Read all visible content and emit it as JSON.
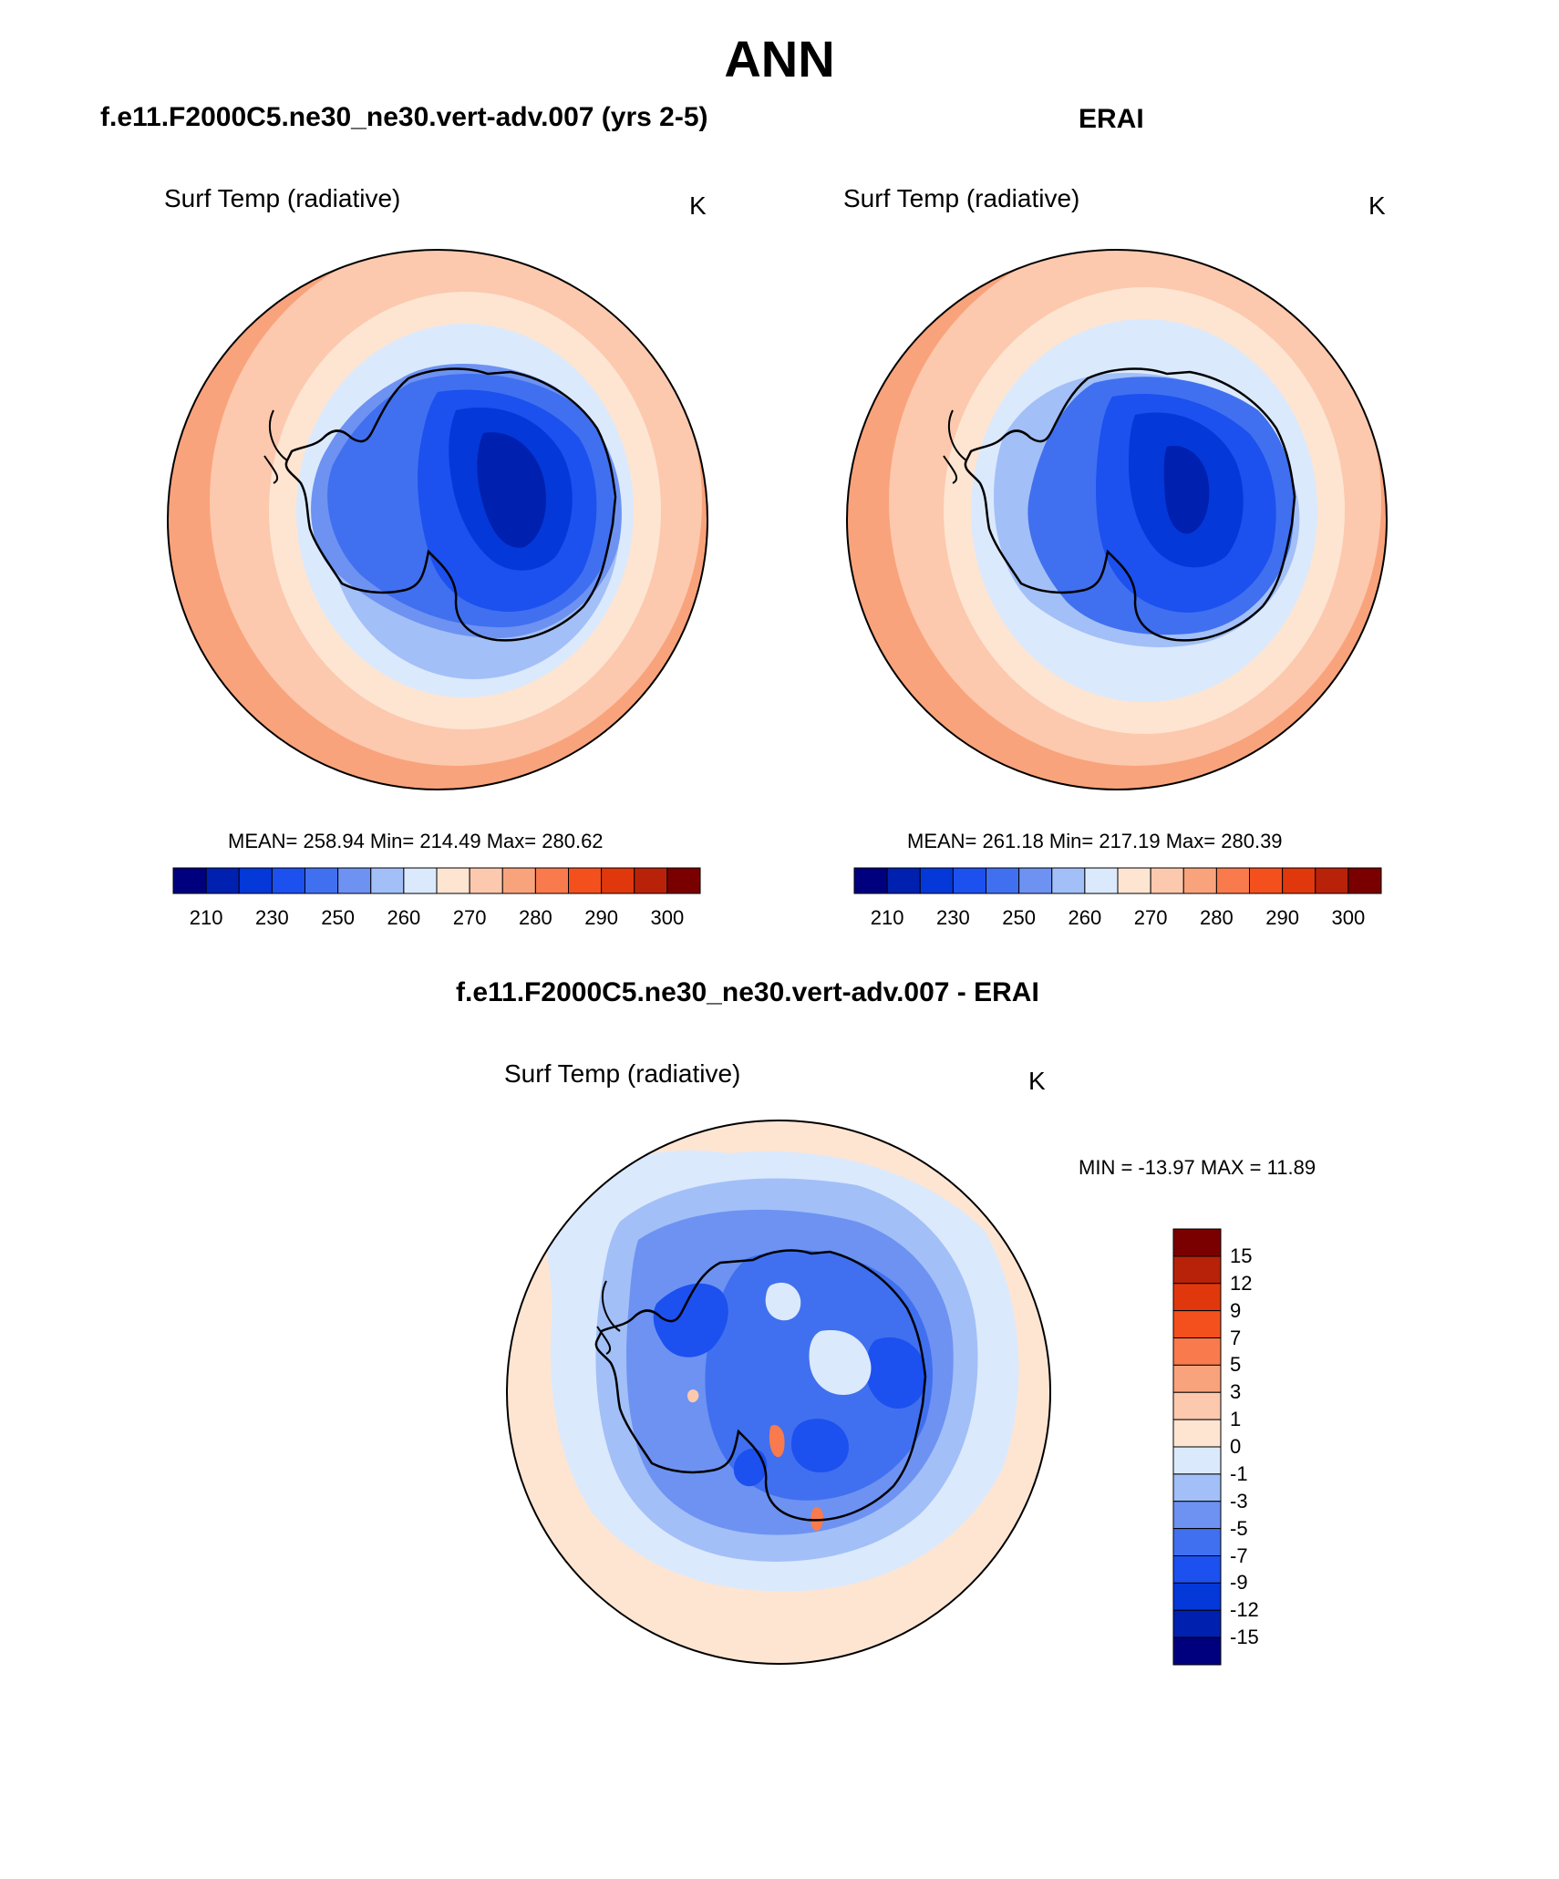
{
  "figure": {
    "season": "ANN",
    "panels": [
      {
        "id": "model",
        "case_title": "f.e11.F2000C5.ne30_ne30.vert-adv.007 (yrs 2-5)",
        "variable": "Surf Temp (radiative)",
        "units": "K",
        "stats": "MEAN= 258.94  Min= 214.49  Max= 280.62"
      },
      {
        "id": "obs",
        "case_title": "ERAI",
        "variable": "Surf Temp (radiative)",
        "units": "K",
        "stats": "MEAN= 261.18  Min= 217.19  Max= 280.39"
      },
      {
        "id": "diff",
        "case_title": "f.e11.F2000C5.ne30_ne30.vert-adv.007 - ERAI",
        "variable": "Surf Temp (radiative)",
        "units": "K",
        "stats": "MIN = -13.97 MAX =  11.89"
      }
    ]
  },
  "colors": {
    "abs_palette": [
      "#00007f",
      "#0020b0",
      "#0438d8",
      "#1c50ef",
      "#4070ef",
      "#6d92f2",
      "#a2bff7",
      "#dbe9fd",
      "#fde5d2",
      "#fcc9ae",
      "#f9a37c",
      "#f87a4d",
      "#f4501e",
      "#e0380c",
      "#b82208",
      "#7a0000"
    ],
    "diff_palette": [
      "#00007f",
      "#0020b0",
      "#0438d8",
      "#1c50ef",
      "#4070ef",
      "#6d92f2",
      "#a2bff7",
      "#dbe9fd",
      "#fde5d2",
      "#fcc9ae",
      "#f9a37c",
      "#f87a4d",
      "#f4501e",
      "#e0380c",
      "#b82208",
      "#7a0000"
    ]
  },
  "chart_data": [
    {
      "type": "heatmap",
      "title": "Surf Temp (radiative)",
      "projection": "south-polar-stereographic",
      "units": "K",
      "mean": 258.94,
      "min": 214.49,
      "max": 280.62,
      "colorbar": {
        "orientation": "horizontal",
        "tick_labels": [
          "210",
          "230",
          "250",
          "260",
          "270",
          "280",
          "290",
          "300"
        ],
        "n_colors": 16
      }
    },
    {
      "type": "heatmap",
      "title": "Surf Temp (radiative)",
      "projection": "south-polar-stereographic",
      "units": "K",
      "mean": 261.18,
      "min": 217.19,
      "max": 280.39,
      "colorbar": {
        "orientation": "horizontal",
        "tick_labels": [
          "210",
          "230",
          "250",
          "260",
          "270",
          "280",
          "290",
          "300"
        ],
        "n_colors": 16
      }
    },
    {
      "type": "heatmap",
      "title": "Surf Temp (radiative)",
      "projection": "south-polar-stereographic",
      "units": "K",
      "min": -13.97,
      "max": 11.89,
      "colorbar": {
        "orientation": "vertical",
        "tick_labels": [
          "15",
          "12",
          "9",
          "7",
          "5",
          "3",
          "1",
          "0",
          "-1",
          "-3",
          "-5",
          "-7",
          "-9",
          "-12",
          "-15"
        ],
        "n_colors": 16
      }
    }
  ]
}
